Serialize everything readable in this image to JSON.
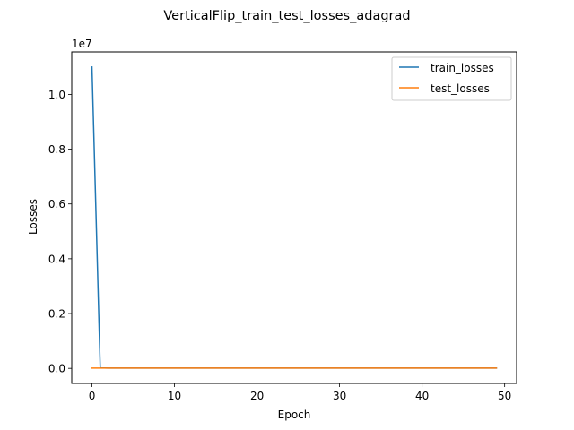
{
  "chart_data": {
    "type": "line",
    "title": "VerticalFlip_train_test_losses_adagrad",
    "xlabel": "Epoch",
    "ylabel": "Losses",
    "y_offset_text": "1e7",
    "xlim": [
      -2.45,
      51.45
    ],
    "ylim": [
      -0.055,
      1.155
    ],
    "y_scale_note": "values in units of 1e7",
    "x_ticks": [
      0,
      10,
      20,
      30,
      40,
      50
    ],
    "y_ticks": [
      0.0,
      0.2,
      0.4,
      0.6,
      0.8,
      1.0
    ],
    "x_tick_labels": [
      "0",
      "10",
      "20",
      "30",
      "40",
      "50"
    ],
    "y_tick_labels": [
      "0.0",
      "0.2",
      "0.4",
      "0.6",
      "0.8",
      "1.0"
    ],
    "grid": false,
    "legend_position": "top-right",
    "x": [
      0,
      1,
      2,
      3,
      4,
      5,
      6,
      7,
      8,
      9,
      10,
      11,
      12,
      13,
      14,
      15,
      16,
      17,
      18,
      19,
      20,
      21,
      22,
      23,
      24,
      25,
      26,
      27,
      28,
      29,
      30,
      31,
      32,
      33,
      34,
      35,
      36,
      37,
      38,
      39,
      40,
      41,
      42,
      43,
      44,
      45,
      46,
      47,
      48,
      49
    ],
    "series": [
      {
        "name": "train_losses",
        "color": "#1f77b4",
        "values": [
          1.1,
          0.002,
          0.001,
          0.001,
          0.001,
          0.001,
          0.001,
          0.001,
          0.001,
          0.001,
          0.001,
          0.001,
          0.001,
          0.001,
          0.001,
          0.001,
          0.001,
          0.001,
          0.001,
          0.001,
          0.001,
          0.001,
          0.001,
          0.001,
          0.001,
          0.001,
          0.001,
          0.001,
          0.001,
          0.001,
          0.001,
          0.001,
          0.001,
          0.001,
          0.001,
          0.001,
          0.001,
          0.001,
          0.001,
          0.001,
          0.001,
          0.001,
          0.001,
          0.001,
          0.001,
          0.001,
          0.001,
          0.001,
          0.001,
          0.001
        ]
      },
      {
        "name": "test_losses",
        "color": "#ff7f0e",
        "values": [
          0.001,
          0.001,
          0.001,
          0.001,
          0.001,
          0.001,
          0.001,
          0.001,
          0.001,
          0.001,
          0.001,
          0.001,
          0.001,
          0.001,
          0.001,
          0.001,
          0.001,
          0.001,
          0.001,
          0.001,
          0.001,
          0.001,
          0.001,
          0.001,
          0.001,
          0.001,
          0.001,
          0.001,
          0.001,
          0.001,
          0.001,
          0.001,
          0.001,
          0.001,
          0.001,
          0.001,
          0.001,
          0.001,
          0.001,
          0.001,
          0.001,
          0.001,
          0.001,
          0.001,
          0.001,
          0.001,
          0.001,
          0.001,
          0.001,
          0.001
        ]
      }
    ]
  }
}
